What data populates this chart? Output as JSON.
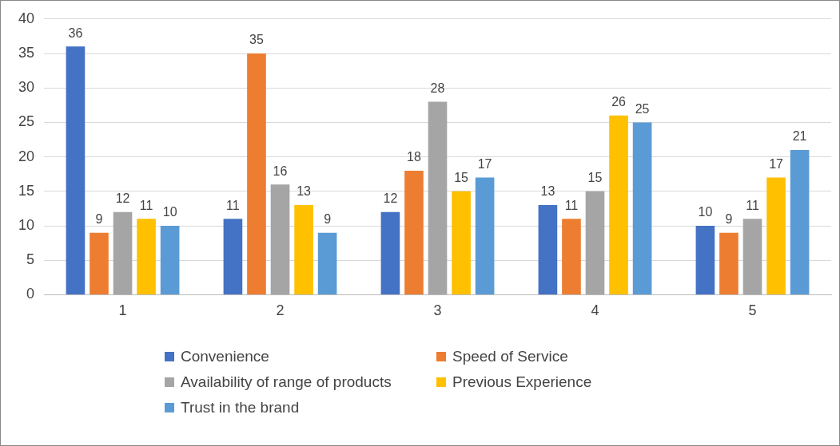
{
  "chart_data": {
    "type": "bar",
    "categories": [
      "1",
      "2",
      "3",
      "4",
      "5"
    ],
    "series": [
      {
        "name": "Convenience",
        "color": "#4472c4",
        "values": [
          36,
          11,
          12,
          13,
          10
        ]
      },
      {
        "name": "Speed of Service",
        "color": "#ed7d31",
        "values": [
          9,
          35,
          18,
          11,
          9
        ]
      },
      {
        "name": "Availability of range of products",
        "color": "#a5a5a5",
        "values": [
          12,
          16,
          28,
          15,
          11
        ]
      },
      {
        "name": "Previous Experience",
        "color": "#ffc000",
        "values": [
          11,
          13,
          15,
          26,
          17
        ]
      },
      {
        "name": "Trust in the brand",
        "color": "#5b9bd5",
        "values": [
          10,
          9,
          17,
          25,
          21
        ]
      }
    ],
    "ylim": [
      0,
      40
    ],
    "yticks": [
      0,
      5,
      10,
      15,
      20,
      25,
      30,
      35,
      40
    ],
    "grid": "y",
    "legend": "bottom",
    "data_labels": true
  }
}
